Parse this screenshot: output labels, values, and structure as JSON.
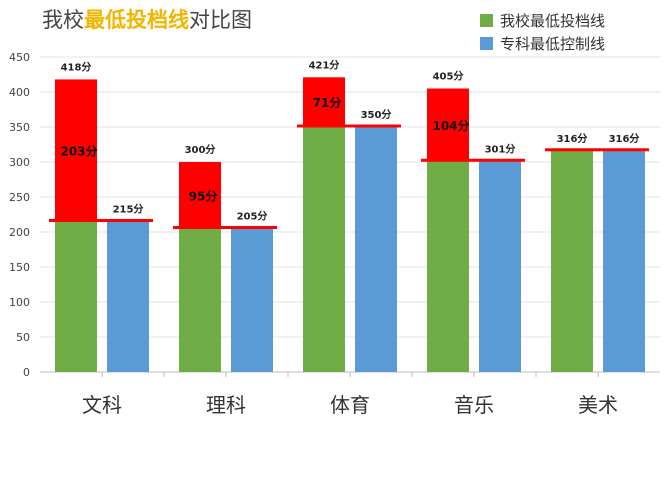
{
  "title": {
    "part1": "我校",
    "part2": "最低投档线",
    "part3": "对比图",
    "color_main": "#444444",
    "color_highlight": "#f2b600"
  },
  "chart_data": {
    "type": "bar",
    "categories": [
      "文科",
      "理科",
      "体育",
      "音乐",
      "美术"
    ],
    "series": [
      {
        "name": "我校最低投档线",
        "color": "#70ad47",
        "values": [
          215,
          205,
          350,
          301,
          316
        ]
      },
      {
        "name": "专科最低控制线",
        "color": "#5b9bd5",
        "values": [
          215,
          205,
          350,
          301,
          316
        ]
      }
    ],
    "overlay": {
      "color": "#ff0000",
      "top_values": [
        418,
        300,
        421,
        405,
        316
      ],
      "top_labels": [
        "418分",
        "300分",
        "421分",
        "405分",
        "316分"
      ],
      "diff_labels": [
        "203分",
        "95分",
        "71分",
        "104分",
        ""
      ],
      "baseline_values": [
        215,
        205,
        350,
        301,
        316
      ]
    },
    "value_labels": [
      "215分",
      "205分",
      "350分",
      "301分",
      "316分"
    ],
    "ylim": [
      0,
      450
    ],
    "yticks": [
      "0",
      "50",
      "100",
      "150",
      "200",
      "250",
      "300",
      "350",
      "400",
      "450"
    ],
    "grid": true,
    "legend_position": "top-right"
  }
}
